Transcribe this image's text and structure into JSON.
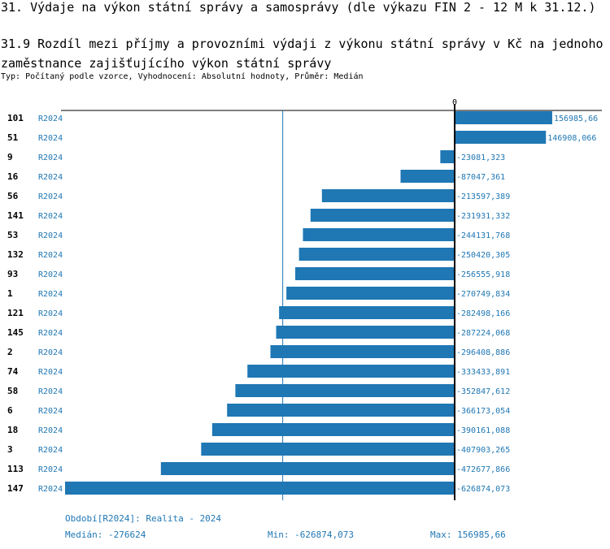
{
  "header": {
    "title": "31. Výdaje na výkon státní správy a samosprávy (dle výkazu FIN 2 - 12 M k 31.12.)",
    "subtitle": "31.9 Rozdíl mezi příjmy a provozními výdaji z výkonu státní správy v Kč na jednoho zaměstnance zajišťujícího výkon státní správy",
    "info": "Typ: Počítaný podle vzorce, Vyhodnocení: Absolutní hodnoty, Průměr: Medián"
  },
  "chart_data": {
    "type": "bar",
    "orientation": "horizontal",
    "zero_label": "0",
    "bar_color": "#1f77b4",
    "categories": [
      "101",
      "51",
      "9",
      "16",
      "56",
      "141",
      "53",
      "132",
      "93",
      "1",
      "121",
      "145",
      "2",
      "74",
      "58",
      "6",
      "18",
      "3",
      "113",
      "147"
    ],
    "period_label": "R2024",
    "values": [
      156985.66,
      146908.066,
      -23081.323,
      -87047.361,
      -213597.389,
      -231931.332,
      -244131.768,
      -250420.305,
      -256555.918,
      -270749.834,
      -282498.166,
      -287224.068,
      -296408.886,
      -333433.891,
      -352847.612,
      -366173.054,
      -390161.088,
      -407903.265,
      -472677.866,
      -626874.073
    ],
    "value_labels": [
      "156985,66",
      "146908,066",
      "-23081,323",
      "-87047,361",
      "-213597,389",
      "-231931,332",
      "-244131,768",
      "-250420,305",
      "-256555,918",
      "-270749,834",
      "-282498,166",
      "-287224,068",
      "-296408,886",
      "-333433,891",
      "-352847,612",
      "-366173,054",
      "-390161,088",
      "-407903,265",
      "-472677,866",
      "-626874,073"
    ],
    "median": -276624
  },
  "footer": {
    "period": "Období[R2024]: Realita - 2024",
    "median": "Medián: -276624",
    "min": "Min: -626874,073",
    "max": "Max: 156985,66"
  }
}
